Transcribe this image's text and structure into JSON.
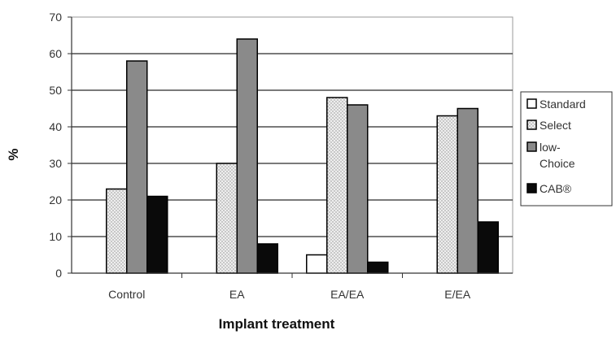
{
  "chart_data": {
    "type": "bar",
    "title": "",
    "xlabel": "Implant treatment",
    "ylabel": "%",
    "ylim": [
      0,
      70
    ],
    "yticks": [
      "0",
      "10",
      "20",
      "30",
      "40",
      "50",
      "60",
      "70"
    ],
    "grid": true,
    "legend_position": "right",
    "categories": [
      "Control",
      "EA",
      "EA/EA",
      "E/EA"
    ],
    "series": [
      {
        "name": "Standard",
        "values": [
          0,
          0,
          5,
          0
        ],
        "color": "#ffffff",
        "pattern": "none"
      },
      {
        "name": "Select",
        "values": [
          23,
          30,
          48,
          43
        ],
        "color": "#e0e0e0",
        "pattern": "dots"
      },
      {
        "name": "low-Choice",
        "values": [
          58,
          64,
          46,
          45
        ],
        "color": "#8a8a8a",
        "pattern": "none"
      },
      {
        "name": "CAB®",
        "values": [
          21,
          8,
          3,
          14
        ],
        "color": "#0a0a0a",
        "pattern": "none"
      }
    ],
    "legend_lines": [
      [
        "Standard"
      ],
      [
        "Select"
      ],
      [
        "low-",
        "Choice"
      ],
      [
        "CAB®"
      ]
    ]
  }
}
